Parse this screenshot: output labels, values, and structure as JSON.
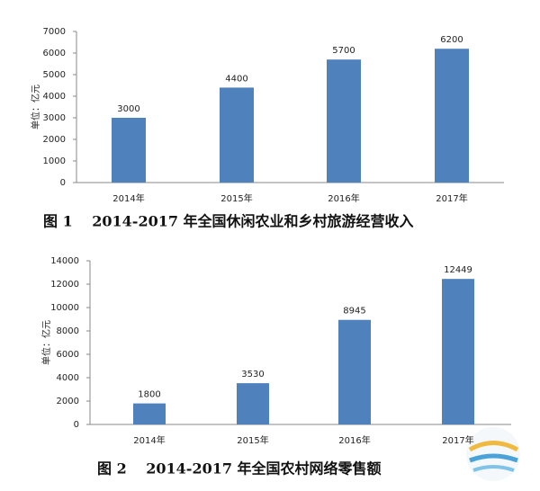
{
  "chart_data": [
    {
      "type": "bar",
      "title": "图 1　 2014-2017 年全国休闲农业和乡村旅游经营收入",
      "y_label": "单位：亿元",
      "categories": [
        "2014年",
        "2015年",
        "2016年",
        "2017年"
      ],
      "values": [
        3000,
        4400,
        5700,
        6200
      ],
      "color": "#4f81bd",
      "ylim": [
        0,
        7000
      ],
      "yticks": [
        0,
        1000,
        2000,
        3000,
        4000,
        5000,
        6000,
        7000
      ],
      "grid": false
    },
    {
      "type": "bar",
      "title": "图 2　 2014-2017 年全国农村网络零售额",
      "y_label": "单位：亿元",
      "categories": [
        "2014年",
        "2015年",
        "2016年",
        "2017年"
      ],
      "values": [
        1800,
        3530,
        8945,
        12449
      ],
      "color": "#4f81bd",
      "ylim": [
        0,
        14000
      ],
      "yticks": [
        0,
        2000,
        4000,
        6000,
        8000,
        10000,
        12000,
        14000
      ],
      "grid": false
    }
  ]
}
